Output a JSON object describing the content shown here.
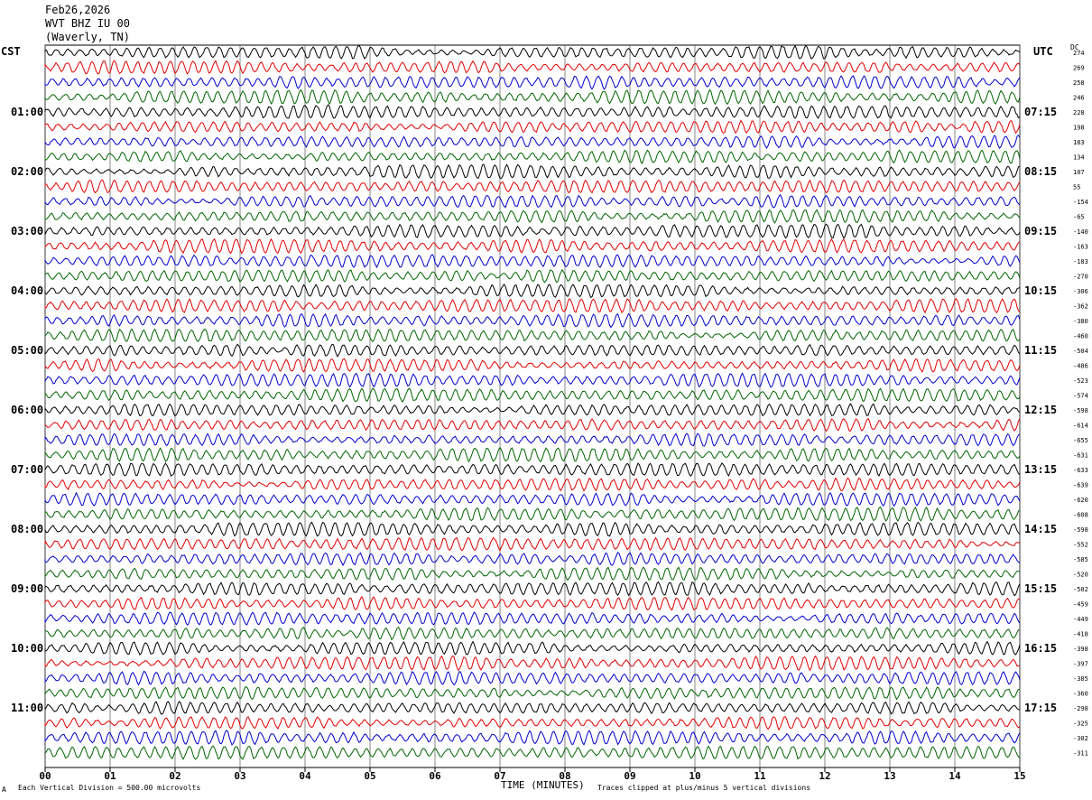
{
  "header": {
    "date": "Feb26,2026",
    "station": "WVT BHZ IU 00",
    "location": "(Waverly, TN)"
  },
  "axis": {
    "left_zone": "CST",
    "right_zone": "UTC",
    "dc_label": "DC",
    "xlabel": "TIME (MINUTES)",
    "scale_note": "Each Vertical Division =  500.00 microvolts",
    "clip_note": "Traces clipped at plus/minus 5 vertical divisions",
    "corner_mark": "A"
  },
  "chart_data": {
    "type": "line",
    "title": "",
    "xlabel": "TIME (MINUTES)",
    "ylabel": "",
    "xlim": [
      0,
      15
    ],
    "x_ticks": [
      "00",
      "01",
      "02",
      "03",
      "04",
      "05",
      "06",
      "07",
      "08",
      "09",
      "10",
      "11",
      "12",
      "13",
      "14",
      "15"
    ],
    "left_time_labels": [
      "01:00",
      "02:00",
      "03:00",
      "04:00",
      "05:00",
      "06:00",
      "07:00",
      "08:00",
      "09:00",
      "10:00",
      "11:00"
    ],
    "right_time_labels": [
      "07:15",
      "08:15",
      "09:15",
      "10:15",
      "11:15",
      "12:15",
      "13:15",
      "14:15",
      "15:15",
      "16:15",
      "17:15"
    ],
    "dc_offsets": [
      "274",
      "269",
      "258",
      "246",
      "228",
      "198",
      "183",
      "134",
      "107",
      "55",
      "-154",
      "-65",
      "-140",
      "-163",
      "-183",
      "-270",
      "-306",
      "-362",
      "-380",
      "-460",
      "-504",
      "-486",
      "-523",
      "-574",
      "-598",
      "-614",
      "-655",
      "-631",
      "-633",
      "-639",
      "-620",
      "-608",
      "-598",
      "-552",
      "-585",
      "-520",
      "-502",
      "-459",
      "-449",
      "-418",
      "-398",
      "-397",
      "-385",
      "-360",
      "-298",
      "-325",
      "-302",
      "-311"
    ],
    "trace_colors": [
      "#000000",
      "#e00000",
      "#0000cc",
      "#006400"
    ],
    "trace_count": 48,
    "grid": true
  }
}
